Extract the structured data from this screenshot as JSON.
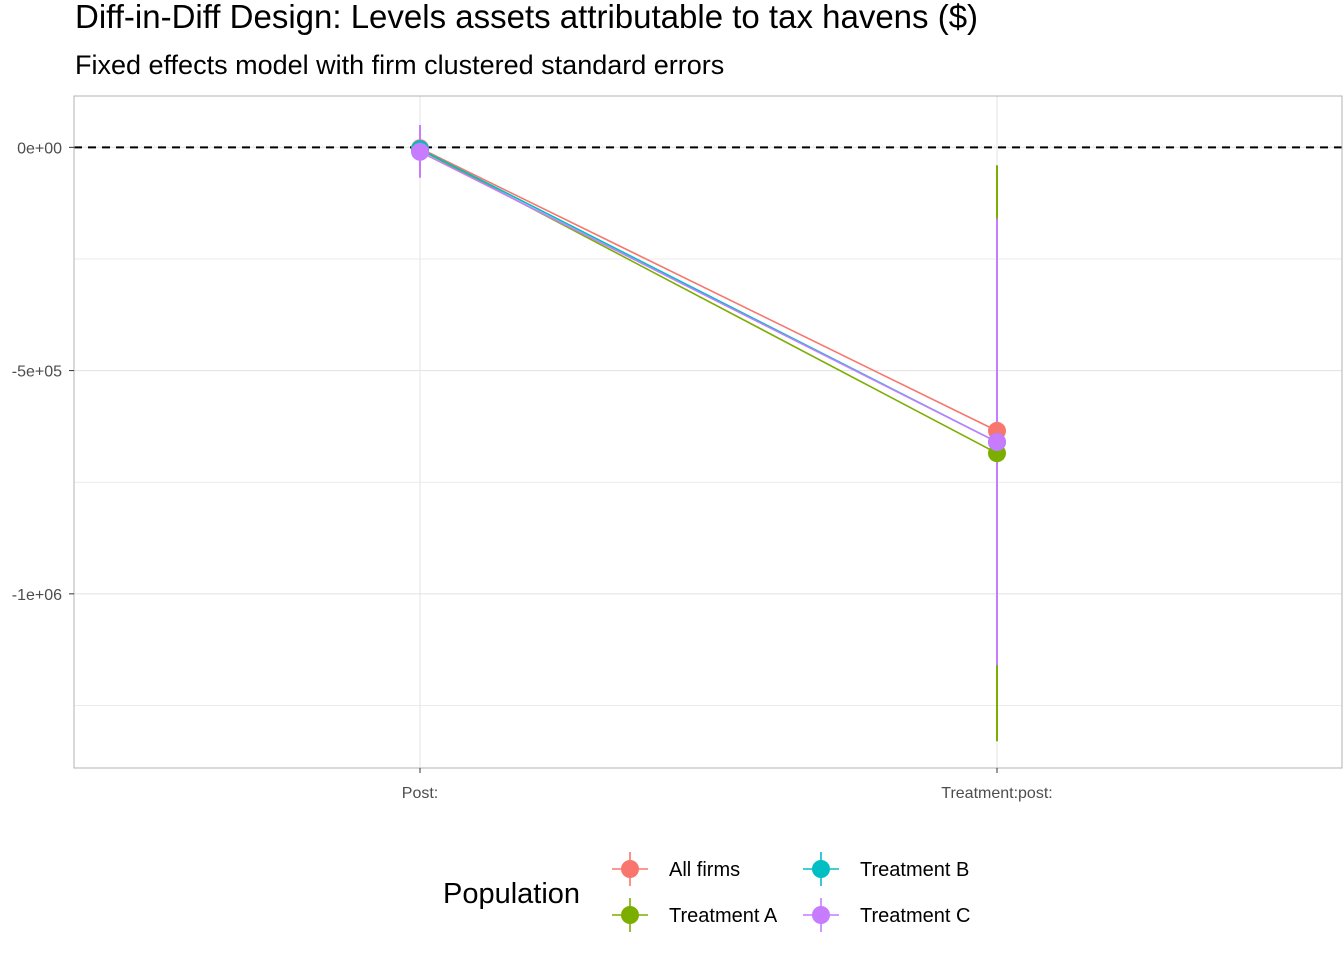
{
  "chart_data": {
    "type": "line",
    "title": "Diff-in-Diff Design: Levels assets attributable to tax havens  ($)",
    "subtitle": "Fixed effects model with firm clustered standard errors",
    "xlabel": "",
    "ylabel": "",
    "categories": [
      "Post:",
      "Treatment:post:"
    ],
    "ylim": [
      -1390000,
      115000
    ],
    "y_ticks": [
      0,
      -500000,
      -1000000
    ],
    "y_tick_labels": [
      "0e+00",
      "-5e+05",
      "-1e+06"
    ],
    "grid": true,
    "reference_line": {
      "y": 0,
      "style": "dashed",
      "color": "#000000"
    },
    "legend": {
      "title": "Population",
      "position": "bottom"
    },
    "series": [
      {
        "name": "All firms",
        "color": "#F8766D",
        "values": [
          -2000,
          -635000
        ],
        "ci_low": [
          -45000,
          -1155000
        ],
        "ci_high": [
          41000,
          -165000
        ]
      },
      {
        "name": "Treatment A",
        "color": "#7CAE00",
        "values": [
          -5000,
          -685000
        ],
        "ci_low": [
          -48000,
          -1330000
        ],
        "ci_high": [
          38000,
          -40000
        ]
      },
      {
        "name": "Treatment B",
        "color": "#00BFC4",
        "values": [
          -4000,
          -660000
        ],
        "ci_low": [
          -47000,
          -1160000
        ],
        "ci_high": [
          39000,
          -160000
        ]
      },
      {
        "name": "Treatment C",
        "color": "#C77CFF",
        "values": [
          -10000,
          -660000
        ],
        "ci_low": [
          -68000,
          -1160000
        ],
        "ci_high": [
          50000,
          -160000
        ]
      }
    ]
  }
}
